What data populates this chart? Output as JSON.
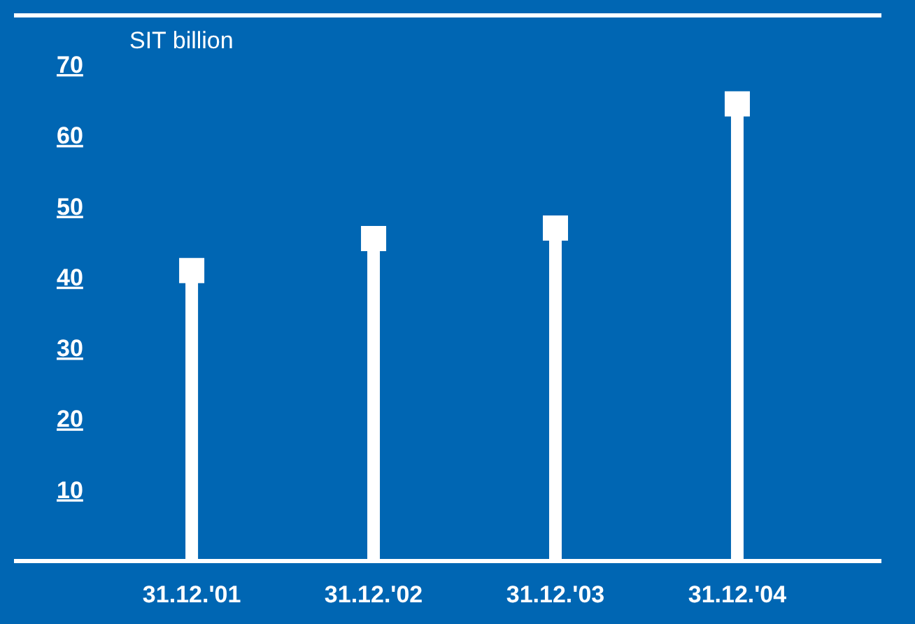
{
  "chart_data": {
    "type": "lollipop",
    "ylabel": "SIT billion",
    "categories": [
      "31.12.'01",
      "31.12.'02",
      "31.12.'03",
      "31.12.'04"
    ],
    "values": [
      41,
      45.5,
      47,
      64.5
    ],
    "color": "#ffffff",
    "marker": "square",
    "ylim": [
      0,
      77
    ],
    "yticks": [
      10,
      20,
      30,
      40,
      50,
      60,
      70
    ]
  }
}
